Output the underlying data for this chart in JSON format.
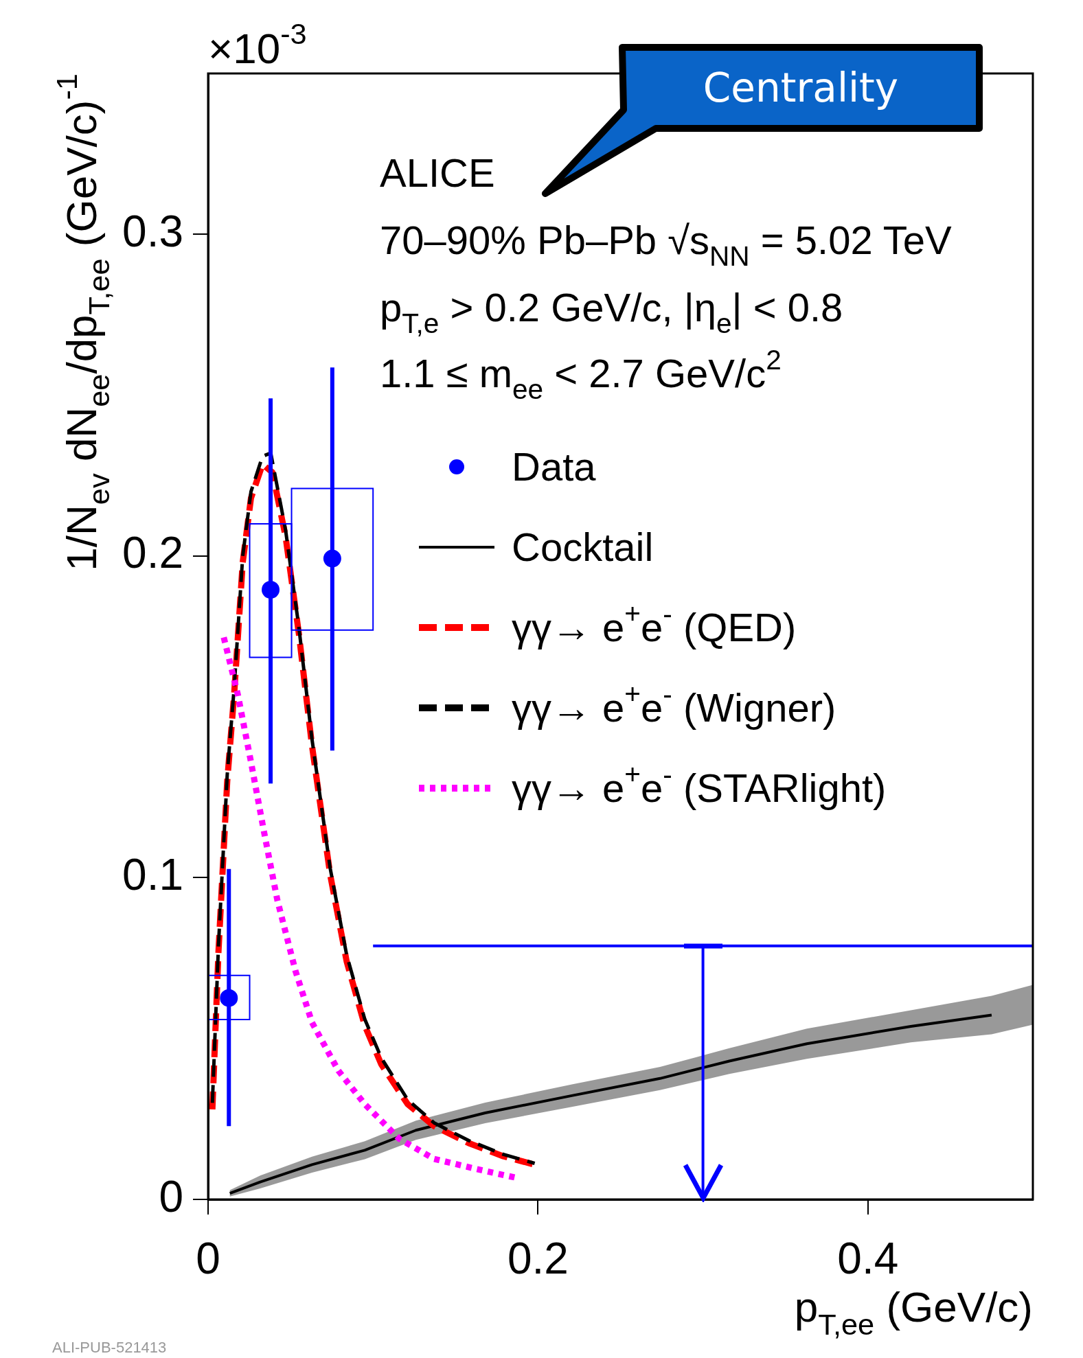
{
  "chart_data": {
    "type": "line",
    "xlabel": "p$_{T,ee}$ (GeV/c)",
    "ylabel": "1/N$_{ev}$ dN$_{ee}$/dp$_{T,ee}$ (GeV/c)$^{-1}$",
    "annotations": [
      "ALICE",
      "70–90% Pb–Pb √s$_{NN}$ = 5.02 TeV",
      "p$_{T,e}$ > 0.2 GeV/c, |η$_{e}$| < 0.8",
      "1.1 ≤ m$_{ee}$ < 2.7 GeV/c$^{2}$",
      "Centrality",
      "ALI-PUB-521413",
      "×10$^{-3}$"
    ],
    "xlim": [
      0,
      0.5
    ],
    "ylim": [
      0,
      0.35
    ],
    "xticks": [
      0,
      0.2,
      0.4
    ],
    "yticks": [
      0,
      0.1,
      0.2,
      0.3
    ],
    "grid": false,
    "legend": "right",
    "series": [
      {
        "name": "Data",
        "type": "scatter",
        "marker": "circle",
        "color": "#0000ff",
        "x": [
          0.0126,
          0.0379,
          0.0753
        ],
        "values": [
          0.0626,
          0.1895,
          0.1992
        ],
        "errors": [
          [
            0.0228,
            0.1027
          ],
          [
            0.1293,
            0.249
          ],
          [
            0.1395,
            0.2586
          ]
        ]
      },
      {
        "name": "Cocktail",
        "line_style": "solid",
        "color": "#000000",
        "x": [
          0.0132,
          0.0316,
          0.063,
          0.095,
          0.126,
          0.168,
          0.221,
          0.274,
          0.316,
          0.363,
          0.426,
          0.475,
          0.5
        ],
        "values": [
          0.0019,
          0.0054,
          0.0108,
          0.0153,
          0.0215,
          0.0269,
          0.0323,
          0.0376,
          0.043,
          0.0484,
          0.0538,
          0.0573,
          null
        ],
        "lower": [
          0.0009,
          0.0034,
          0.0083,
          0.0125,
          0.0185,
          0.0237,
          0.0288,
          0.034,
          0.039,
          0.0437,
          0.0488,
          0.0513,
          0.0543
        ],
        "upper": [
          0.0029,
          0.0074,
          0.0133,
          0.0181,
          0.0245,
          0.0301,
          0.0358,
          0.0412,
          0.047,
          0.0531,
          0.0588,
          0.0633,
          0.0667
        ]
      },
      {
        "name": "γγ→ e$^{+}$e$^{-}$ (QED)",
        "line_style": "dashed",
        "color": "#ff0000",
        "x": [
          0.0026,
          0.0063,
          0.0116,
          0.0158,
          0.021,
          0.026,
          0.033,
          0.039,
          0.047,
          0.055,
          0.063,
          0.074,
          0.084,
          0.095,
          0.105,
          0.121,
          0.137,
          0.158,
          0.179,
          0.198
        ],
        "values": [
          0.028,
          0.077,
          0.13,
          0.157,
          0.198,
          0.218,
          0.2285,
          0.226,
          0.206,
          0.176,
          0.141,
          0.101,
          0.074,
          0.054,
          0.042,
          0.0296,
          0.0228,
          0.0175,
          0.0134,
          0.0108
        ]
      },
      {
        "name": "γγ→ e$^{+}$e$^{-}$ (Wigner)",
        "line_style": "dashed",
        "color": "#000000",
        "x": [
          0.0026,
          0.0063,
          0.0116,
          0.0158,
          0.021,
          0.026,
          0.033,
          0.038,
          0.047,
          0.055,
          0.063,
          0.074,
          0.084,
          0.095,
          0.105,
          0.121,
          0.137,
          0.158,
          0.179,
          0.198
        ],
        "values": [
          0.03,
          0.079,
          0.132,
          0.159,
          0.2,
          0.22,
          0.231,
          0.232,
          0.208,
          0.178,
          0.143,
          0.103,
          0.076,
          0.056,
          0.044,
          0.031,
          0.0238,
          0.0183,
          0.014,
          0.0112
        ]
      },
      {
        "name": "γγ→ e$^{+}$e$^{-}$ (STARlight)",
        "line_style": "dotted",
        "color": "#ff00ff",
        "x": [
          0.0095,
          0.018,
          0.026,
          0.034,
          0.042,
          0.053,
          0.063,
          0.079,
          0.095,
          0.116,
          0.137,
          0.163,
          0.187
        ],
        "values": [
          0.1747,
          0.157,
          0.136,
          0.114,
          0.093,
          0.071,
          0.055,
          0.04,
          0.0296,
          0.0188,
          0.0126,
          0.0094,
          0.0067
        ]
      },
      {
        "type": "bar",
        "color": "#0000ff",
        "x": [
          0.0126,
          0.0379,
          0.0753
        ],
        "base": [
          0.0559,
          0.1685,
          0.177
        ],
        "values": [
          0.0137,
          0.0415,
          0.044
        ]
      },
      {
        "line_style": "solid",
        "color": "#0000ff",
        "x": [
          0.1,
          0.5
        ],
        "values": [
          0.0788,
          0.0788
        ]
      },
      {
        "line_style": "solid",
        "color": "#0000ff",
        "x": [
          0.3,
          0.3
        ],
        "values": [
          0.0788,
          0
        ]
      }
    ]
  }
}
